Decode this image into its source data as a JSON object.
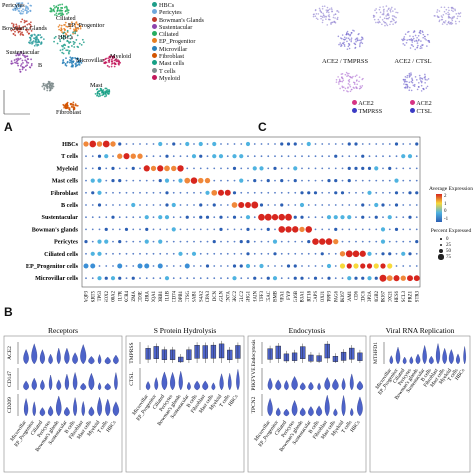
{
  "umap": {
    "cluster_labels": [
      "Pericytes",
      "Ciliated",
      "Bowman's Glands",
      "EP_Progenitor",
      "HBCs",
      "Sustentacular",
      "Microvillar",
      "B",
      "Myeloid",
      "Mast",
      "Fibroblast"
    ],
    "legend": [
      {
        "label": "HBCs",
        "color": "#1f9e89"
      },
      {
        "label": "Pericytes",
        "color": "#6fa8dc"
      },
      {
        "label": "Bowman's Glands",
        "color": "#c0392b"
      },
      {
        "label": "Sustentacular",
        "color": "#8e44ad"
      },
      {
        "label": "Ciliated",
        "color": "#27ae60"
      },
      {
        "label": "EP_Progenitor",
        "color": "#e67e22"
      },
      {
        "label": "Microvillar",
        "color": "#2980b9"
      },
      {
        "label": "Fibroblast",
        "color": "#d35400"
      },
      {
        "label": "Mast cells",
        "color": "#16a085"
      },
      {
        "label": "T cells",
        "color": "#7f8c8d"
      },
      {
        "label": "Myeloid",
        "color": "#c2185b"
      }
    ]
  },
  "feature_plots": {
    "labels": [
      "ACE2 / TMPRSS",
      "ACE2 / CTSL"
    ],
    "legend_a": [
      "ACE2",
      "TMPRSS"
    ],
    "legend_b": [
      "ACE2",
      "CTSL"
    ],
    "legend_a_colors": [
      "#d63384",
      "#3b3bc4"
    ],
    "legend_b_colors": [
      "#d63384",
      "#3b3bc4"
    ]
  },
  "panel_letters": {
    "a": "A",
    "c": "C",
    "b": "B"
  },
  "dotplot": {
    "rows": [
      "HBCs",
      "T cells",
      "Myeloid",
      "Mast cells",
      "Fibroblast",
      "B cells",
      "Sustentacular",
      "Bowman's glands",
      "Pericytes",
      "Ciliated cells",
      "EP_Progenitor cells",
      "Microvillar cells"
    ],
    "genes": [
      "AQP3",
      "KRT5",
      "TP63",
      "SOX2",
      "S100A2",
      "IL7R",
      "CXCR4",
      "GZMA",
      "CD3E",
      "HLA-DRA",
      "HLA-DQA1",
      "HLA-DRB1",
      "IL1B",
      "CD74",
      "HLA-DPB1",
      "CTSG",
      "TPSAB1",
      "MS4A2",
      "CPA3",
      "DCN",
      "TAGLN",
      "SCN7A",
      "IGKC2",
      "IGLC2",
      "IGHG1",
      "JCHAIN",
      "TFF3",
      "MUC5AC",
      "MSMB",
      "BPIFA1",
      "FYP",
      "ZG16B",
      "SCGB3A1",
      "KRT18",
      "CAPS",
      "FOXJ1",
      "TPPP3",
      "SPAG6",
      "MKI67",
      "NCAM1",
      "CD6",
      "CCDC6",
      "TOP2A",
      "HMGB2",
      "MKI67",
      "SOX21",
      "HES6",
      "ASCL3",
      "PTPRZ1",
      "SSTR3"
    ],
    "legend_title": "Average Expression",
    "color_ticks": [
      "2",
      "1",
      "0",
      "-1"
    ],
    "size_title": "Percent Expressed",
    "size_ticks": [
      "0",
      "25",
      "50",
      "75"
    ]
  },
  "violins": {
    "groups": [
      {
        "title": "Receptors",
        "genes": [
          "ACE2",
          "CD147",
          "CD209"
        ]
      },
      {
        "title": "S Protein Hydrolysis",
        "genes": [
          "TMPRSS",
          "CTSL"
        ]
      },
      {
        "title": "Endocytosis",
        "genes": [
          "Endocytosis",
          "PIKFYVE",
          "TPCN2"
        ]
      },
      {
        "title": "Viral RNA Replication",
        "genes": [
          "MTHFD1"
        ]
      }
    ],
    "cell_types": [
      "Microvillar",
      "EP_Progenitor",
      "Ciliated",
      "Pericytes",
      "Bowman's glands",
      "Sustentacular",
      "B cells",
      "Fibroblast",
      "Mast cells",
      "Myeloid",
      "T cells",
      "HBCs"
    ]
  },
  "colors": {
    "violin_fill": "#4d63c9",
    "box_fill": "#4d63c9",
    "dot_high": "#d7261e",
    "dot_mid": "#f7d93a",
    "dot_low": "#2c5fb3"
  }
}
